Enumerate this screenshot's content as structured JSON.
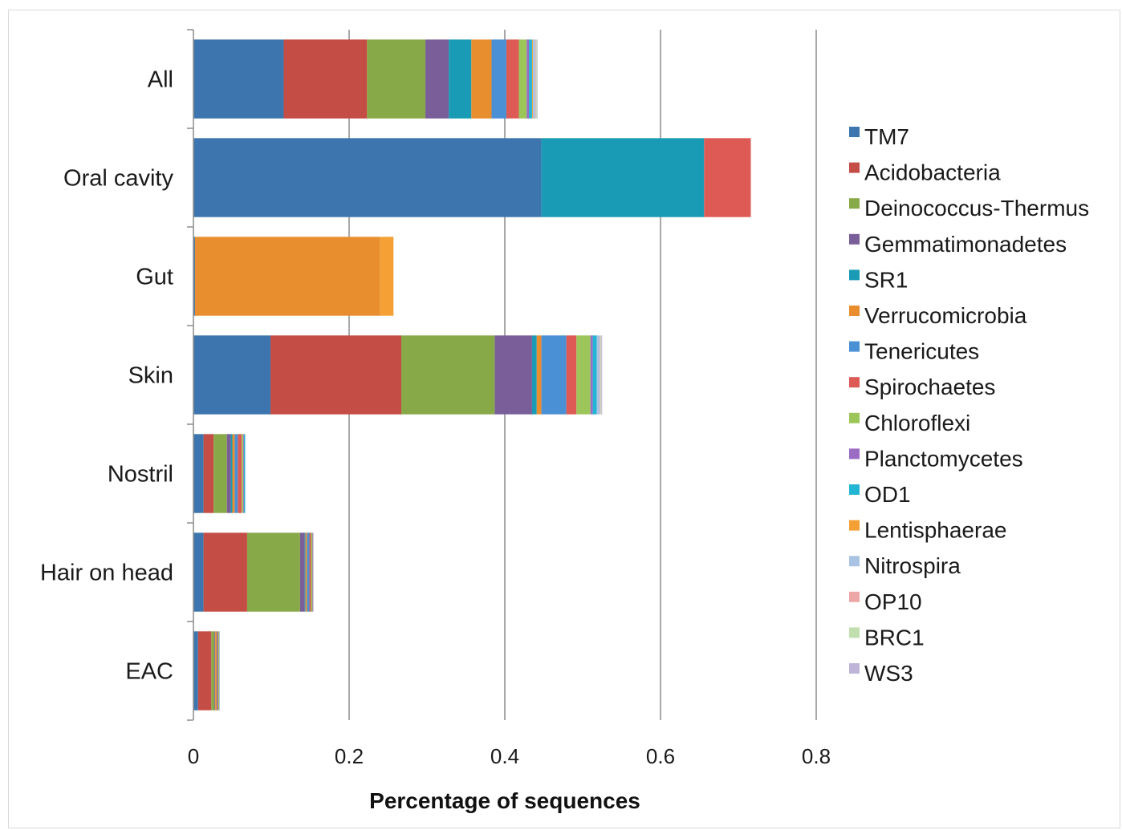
{
  "chart_data": {
    "type": "bar",
    "orientation": "horizontal",
    "stacked": true,
    "title": "",
    "xlabel": "Percentage of sequences",
    "ylabel": "",
    "xlim": [
      0,
      0.8
    ],
    "xticks": [
      "0",
      "0.2",
      "0.4",
      "0.6",
      "0.8"
    ],
    "grid": "vertical",
    "legend_position": "right",
    "categories": [
      "All",
      "Oral cavity",
      "Gut",
      "Skin",
      "Nostril",
      "Hair on head",
      "EAC"
    ],
    "series": [
      {
        "name": "TM7",
        "color": "#3D76AE",
        "values": [
          0.116,
          0.447,
          0.002,
          0.099,
          0.013,
          0.013,
          0.006
        ]
      },
      {
        "name": "Acidobacteria",
        "color": "#C44D45",
        "values": [
          0.107,
          0.0,
          0.0,
          0.168,
          0.013,
          0.056,
          0.017
        ]
      },
      {
        "name": "Deinococcus-Thermus",
        "color": "#88A948",
        "values": [
          0.075,
          0.0,
          0.0,
          0.12,
          0.017,
          0.068,
          0.004
        ]
      },
      {
        "name": "Gemmatimonadetes",
        "color": "#7A5E9A",
        "values": [
          0.03,
          0.0,
          0.0,
          0.048,
          0.005,
          0.006,
          0.001
        ]
      },
      {
        "name": "SR1",
        "color": "#1A9BB5",
        "values": [
          0.029,
          0.209,
          0.0,
          0.006,
          0.002,
          0.001,
          0.0
        ]
      },
      {
        "name": "Verrucomicrobia",
        "color": "#E88E2F",
        "values": [
          0.026,
          0.0,
          0.238,
          0.006,
          0.003,
          0.002,
          0.002
        ]
      },
      {
        "name": "Tenericutes",
        "color": "#4A90D4",
        "values": [
          0.019,
          0.0,
          0.0,
          0.032,
          0.004,
          0.003,
          0.001
        ]
      },
      {
        "name": "Spirochaetes",
        "color": "#DE5B55",
        "values": [
          0.016,
          0.06,
          0.0,
          0.013,
          0.005,
          0.002,
          0.001
        ]
      },
      {
        "name": "Chloroflexi",
        "color": "#9CC65A",
        "values": [
          0.01,
          0.0,
          0.0,
          0.018,
          0.002,
          0.002,
          0.001
        ]
      },
      {
        "name": "Planctomycetes",
        "color": "#9A6CC3",
        "values": [
          0.003,
          0.0,
          0.0,
          0.003,
          0.001,
          0.001,
          0.0
        ]
      },
      {
        "name": "OD1",
        "color": "#23B6D4",
        "values": [
          0.004,
          0.0,
          0.0,
          0.005,
          0.001,
          0.0,
          0.0
        ]
      },
      {
        "name": "Lentisphaerae",
        "color": "#F5A035",
        "values": [
          0.001,
          0.0,
          0.017,
          0.0,
          0.0,
          0.0,
          0.0
        ]
      },
      {
        "name": "Nitrospira",
        "color": "#A9C4E3",
        "values": [
          0.003,
          0.0,
          0.0,
          0.004,
          0.001,
          0.0,
          0.001
        ]
      },
      {
        "name": "OP10",
        "color": "#EDA7A6",
        "values": [
          0.001,
          0.0,
          0.0,
          0.001,
          0.0,
          0.0,
          0.0
        ]
      },
      {
        "name": "BRC1",
        "color": "#C1DFAE",
        "values": [
          0.001,
          0.0,
          0.0,
          0.001,
          0.0,
          0.0,
          0.0
        ]
      },
      {
        "name": "WS3",
        "color": "#BEB5D9",
        "values": [
          0.001,
          0.0,
          0.0,
          0.001,
          0.0,
          0.0,
          0.0
        ]
      }
    ]
  }
}
